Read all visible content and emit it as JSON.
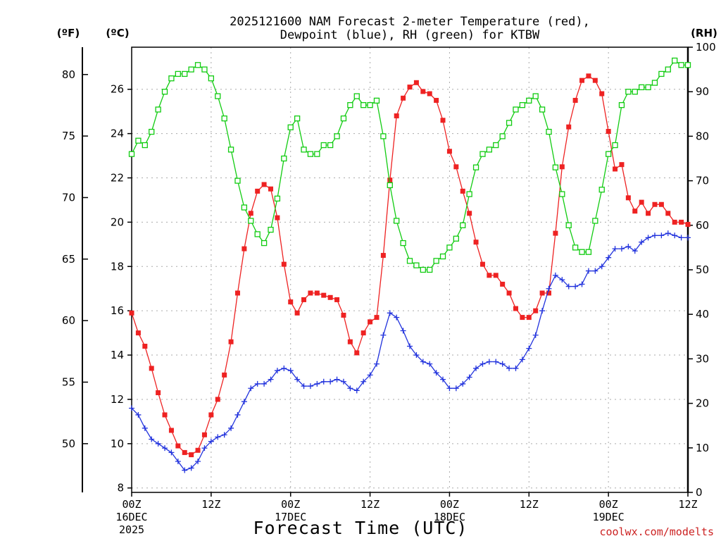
{
  "title_line1": "2025121600 NAM Forecast 2-meter Temperature (red),",
  "title_line2": "Dewpoint (blue), RH (green) for KTBW",
  "unit_f": "(ºF)",
  "unit_c": "(ºC)",
  "unit_rh": "(RH)",
  "xlabel": "Forecast Time (UTC)",
  "credit": "coolwx.com/modelts",
  "colors": {
    "temperature": "#ee2222",
    "dewpoint": "#2233dd",
    "rh": "#11cc11",
    "grid": "#aaaaaa"
  },
  "chart_data": {
    "type": "line",
    "x_step_hours": 1,
    "xlim_hours": [
      0,
      84
    ],
    "x_ticks": [
      {
        "hour": 0,
        "line1": "00Z",
        "line2": "16DEC",
        "line3": "2025"
      },
      {
        "hour": 12,
        "line1": "12Z",
        "line2": "",
        "line3": ""
      },
      {
        "hour": 24,
        "line1": "00Z",
        "line2": "17DEC",
        "line3": ""
      },
      {
        "hour": 36,
        "line1": "12Z",
        "line2": "",
        "line3": ""
      },
      {
        "hour": 48,
        "line1": "00Z",
        "line2": "18DEC",
        "line3": ""
      },
      {
        "hour": 60,
        "line1": "12Z",
        "line2": "",
        "line3": ""
      },
      {
        "hour": 72,
        "line1": "00Z",
        "line2": "19DEC",
        "line3": ""
      },
      {
        "hour": 84,
        "line1": "12Z",
        "line2": "",
        "line3": ""
      }
    ],
    "ylim_c": [
      7.8,
      27.9
    ],
    "y_ticks_c": [
      "8",
      "10",
      "12",
      "14",
      "16",
      "18",
      "20",
      "22",
      "24",
      "26"
    ],
    "y_ticks_f": [
      "50",
      "55",
      "60",
      "65",
      "70",
      "75",
      "80"
    ],
    "ylim_rh": [
      0,
      100
    ],
    "y_ticks_rh": [
      "0",
      "10",
      "20",
      "30",
      "40",
      "50",
      "60",
      "70",
      "80",
      "90",
      "100"
    ],
    "grid": true,
    "series": [
      {
        "name": "Temperature",
        "axis": "celsius",
        "marker": "filled-square",
        "values": [
          15.9,
          15.0,
          14.4,
          13.4,
          12.3,
          11.3,
          10.6,
          9.9,
          9.6,
          9.5,
          9.7,
          10.4,
          11.3,
          12.0,
          13.1,
          14.6,
          16.8,
          18.8,
          20.4,
          21.4,
          21.7,
          21.5,
          20.2,
          18.1,
          16.4,
          15.9,
          16.5,
          16.8,
          16.8,
          16.7,
          16.6,
          16.5,
          15.8,
          14.6,
          14.1,
          15.0,
          15.5,
          15.7,
          18.5,
          21.9,
          24.8,
          25.6,
          26.1,
          26.3,
          25.9,
          25.8,
          25.5,
          24.6,
          23.2,
          22.5,
          21.4,
          20.4,
          19.1,
          18.1,
          17.6,
          17.6,
          17.2,
          16.8,
          16.1,
          15.7,
          15.7,
          16.0,
          16.8,
          16.8,
          19.5,
          22.5,
          24.3,
          25.5,
          26.4,
          26.6,
          26.4,
          25.8,
          24.1,
          22.4,
          22.6,
          21.1,
          20.5,
          20.9,
          20.4,
          20.8,
          20.8,
          20.4,
          20.0,
          20.0,
          19.9
        ]
      },
      {
        "name": "Dewpoint",
        "axis": "celsius",
        "marker": "plus",
        "values": [
          11.6,
          11.3,
          10.7,
          10.2,
          10.0,
          9.8,
          9.6,
          9.2,
          8.8,
          8.9,
          9.2,
          9.8,
          10.1,
          10.3,
          10.4,
          10.7,
          11.3,
          11.9,
          12.5,
          12.7,
          12.7,
          12.9,
          13.3,
          13.4,
          13.3,
          12.9,
          12.6,
          12.6,
          12.7,
          12.8,
          12.8,
          12.9,
          12.8,
          12.5,
          12.4,
          12.8,
          13.1,
          13.6,
          14.9,
          15.9,
          15.7,
          15.1,
          14.4,
          14.0,
          13.7,
          13.6,
          13.2,
          12.9,
          12.5,
          12.5,
          12.7,
          13.0,
          13.4,
          13.6,
          13.7,
          13.7,
          13.6,
          13.4,
          13.4,
          13.8,
          14.3,
          14.9,
          16.0,
          17.0,
          17.6,
          17.4,
          17.1,
          17.1,
          17.2,
          17.8,
          17.8,
          18.0,
          18.4,
          18.8,
          18.8,
          18.9,
          18.7,
          19.1,
          19.3,
          19.4,
          19.4,
          19.5,
          19.4,
          19.3,
          19.3
        ]
      },
      {
        "name": "RH",
        "axis": "rh",
        "marker": "open-square",
        "values": [
          76,
          79,
          78,
          81,
          86,
          90,
          93,
          94,
          94,
          95,
          96,
          95,
          93,
          89,
          84,
          77,
          70,
          64,
          61,
          58,
          56,
          59,
          66,
          75,
          82,
          84,
          77,
          76,
          76,
          78,
          78,
          80,
          84,
          87,
          89,
          87,
          87,
          88,
          80,
          69,
          61,
          56,
          52,
          51,
          50,
          50,
          52,
          53,
          55,
          57,
          60,
          67,
          73,
          76,
          77,
          78,
          80,
          83,
          86,
          87,
          88,
          89,
          86,
          81,
          73,
          67,
          60,
          55,
          54,
          54,
          61,
          68,
          76,
          78,
          87,
          90,
          90,
          91,
          91,
          92,
          94,
          95,
          97,
          96,
          96
        ]
      }
    ]
  }
}
